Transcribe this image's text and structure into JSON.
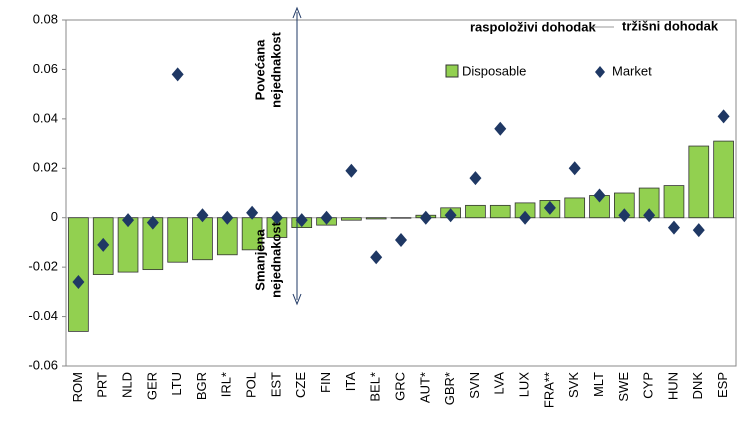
{
  "chart_data": {
    "type": "bar",
    "categories": [
      "ROM",
      "PRT",
      "NLD",
      "GER",
      "LTU",
      "BGR",
      "IRL*",
      "POL",
      "EST",
      "CZE",
      "FIN",
      "ITA",
      "BEL*",
      "GRC",
      "AUT*",
      "GBR*",
      "SVN",
      "LVA",
      "LUX",
      "FRA**",
      "SVK",
      "MLT",
      "SWE",
      "CYP",
      "HUN",
      "DNK",
      "ESP"
    ],
    "series": [
      {
        "name": "Disposable",
        "type": "bar",
        "color": "#92d050",
        "values": [
          -0.046,
          -0.023,
          -0.022,
          -0.021,
          -0.018,
          -0.017,
          -0.015,
          -0.013,
          -0.008,
          -0.004,
          -0.003,
          -0.001,
          -0.0005,
          0,
          0.001,
          0.004,
          0.005,
          0.005,
          0.006,
          0.007,
          0.008,
          0.009,
          0.01,
          0.012,
          0.013,
          0.029,
          0.031
        ]
      },
      {
        "name": "Market",
        "type": "scatter",
        "color": "#1f3864",
        "values": [
          -0.026,
          -0.011,
          -0.001,
          -0.002,
          0.058,
          0.001,
          0,
          0.002,
          0,
          -0.001,
          0,
          0.019,
          -0.016,
          -0.009,
          0,
          0.001,
          0.016,
          0.036,
          0,
          0.004,
          0.02,
          0.009,
          0.001,
          0.001,
          -0.004,
          -0.005,
          0.041
        ]
      }
    ],
    "ylim": [
      -0.06,
      0.08
    ],
    "yticks": [
      -0.06,
      -0.04,
      -0.02,
      0,
      0.02,
      0.04,
      0.06,
      0.08
    ],
    "header": [
      "raspoloživi dohodak",
      "tržišni dohodak"
    ],
    "annotations": [
      [
        "Povećana",
        "nejednakost"
      ],
      [
        "Smanjena",
        "nejednakost"
      ]
    ],
    "grid": false
  }
}
